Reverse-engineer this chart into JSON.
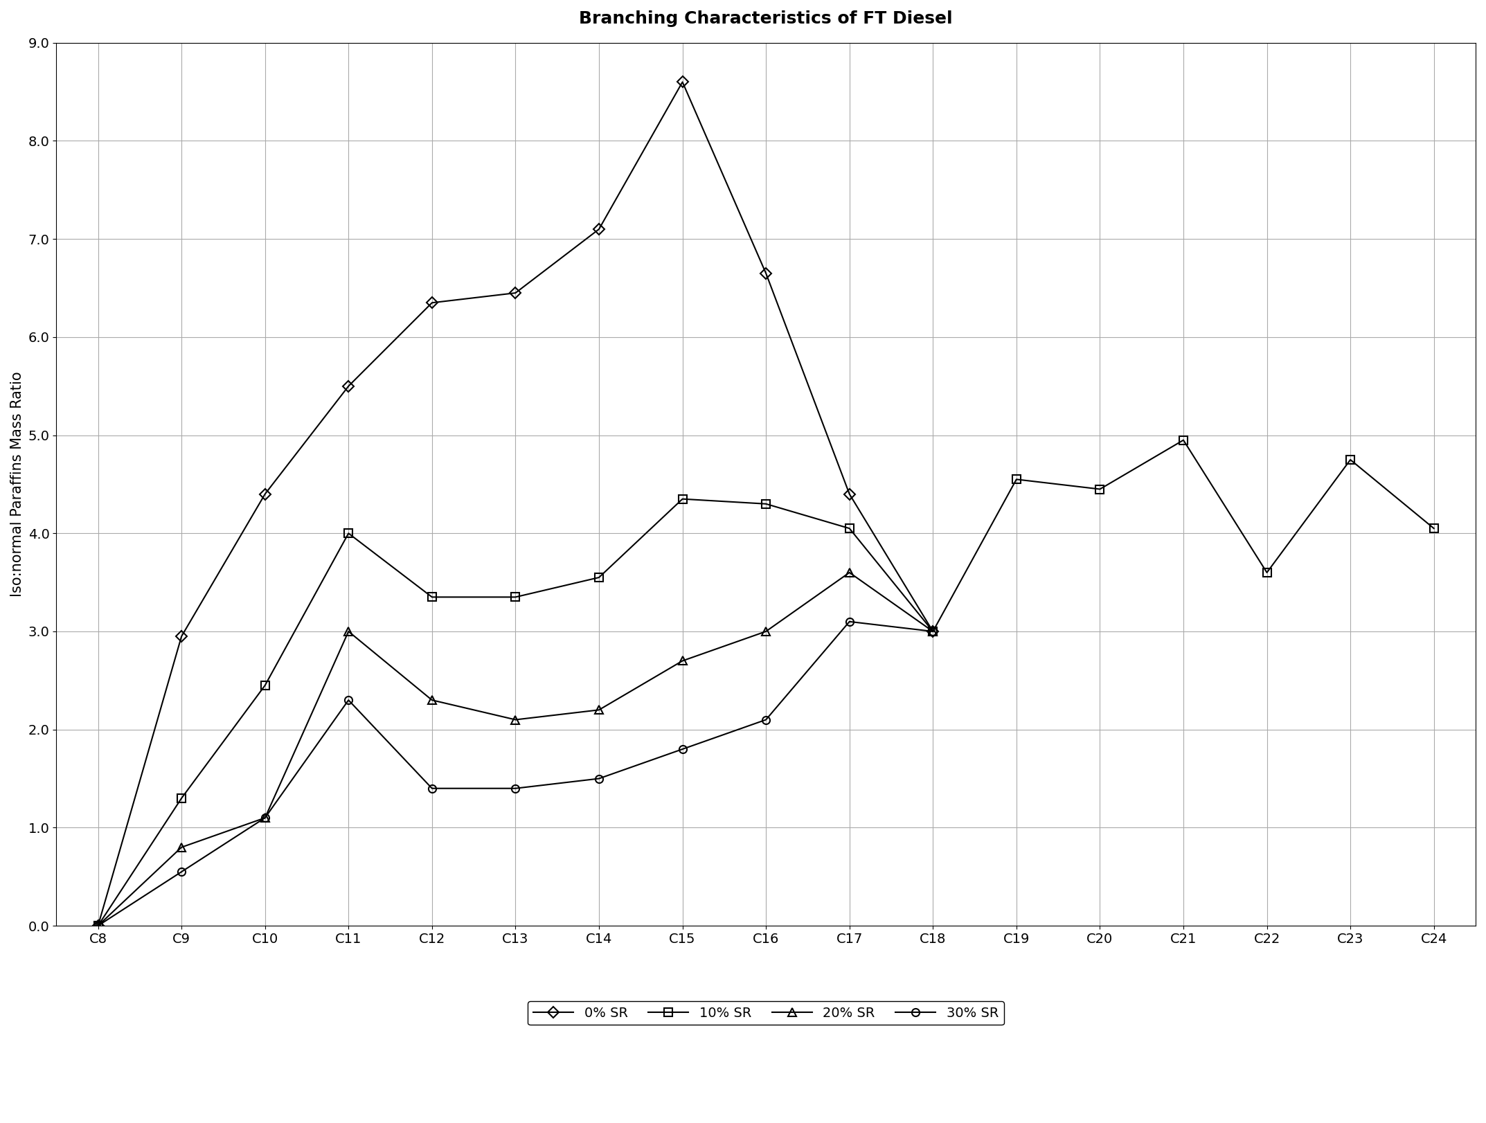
{
  "title": "Branching Characteristics of FT Diesel",
  "ylabel": "Iso:normal Paraffins Mass Ratio",
  "xlabel": "",
  "x_labels": [
    "C8",
    "C9",
    "C10",
    "C11",
    "C12",
    "C13",
    "C14",
    "C15",
    "C16",
    "C17",
    "C18",
    "C19",
    "C20",
    "C21",
    "C22",
    "C23",
    "C24"
  ],
  "ylim": [
    0.0,
    9.0
  ],
  "yticks": [
    0.0,
    1.0,
    2.0,
    3.0,
    4.0,
    5.0,
    6.0,
    7.0,
    8.0,
    9.0
  ],
  "series": {
    "0% SR": {
      "values": [
        0.0,
        2.95,
        4.4,
        5.5,
        6.35,
        6.45,
        7.1,
        8.6,
        6.65,
        4.4,
        3.0,
        null,
        null,
        null,
        null,
        null,
        null
      ],
      "marker": "D",
      "color": "#000000",
      "linewidth": 1.5,
      "markersize": 8,
      "fillstyle": "none"
    },
    "10% SR": {
      "values": [
        0.0,
        1.3,
        2.45,
        4.0,
        3.35,
        3.35,
        3.55,
        4.35,
        4.3,
        4.05,
        3.0,
        4.55,
        4.45,
        4.95,
        3.6,
        4.75,
        4.05
      ],
      "marker": "s",
      "color": "#000000",
      "linewidth": 1.5,
      "markersize": 8,
      "fillstyle": "none"
    },
    "20% SR": {
      "values": [
        0.0,
        0.8,
        1.1,
        3.0,
        2.3,
        2.1,
        2.2,
        2.7,
        3.0,
        3.6,
        3.0,
        null,
        null,
        null,
        null,
        null,
        null
      ],
      "marker": "^",
      "color": "#000000",
      "linewidth": 1.5,
      "markersize": 8,
      "fillstyle": "none"
    },
    "30% SR": {
      "values": [
        0.0,
        0.55,
        1.1,
        2.3,
        1.4,
        1.4,
        1.5,
        1.8,
        2.1,
        3.1,
        3.0,
        null,
        null,
        null,
        null,
        null,
        null
      ],
      "marker": "o",
      "color": "#000000",
      "linewidth": 1.5,
      "markersize": 8,
      "fillstyle": "none"
    }
  },
  "legend_labels": [
    "0% SR",
    "10% SR",
    "20% SR",
    "30% SR"
  ],
  "legend_markers": [
    "D",
    "s",
    "^",
    "o"
  ],
  "background_color": "#ffffff",
  "grid_color": "#aaaaaa",
  "title_fontsize": 18,
  "label_fontsize": 15,
  "tick_fontsize": 14,
  "legend_fontsize": 14
}
